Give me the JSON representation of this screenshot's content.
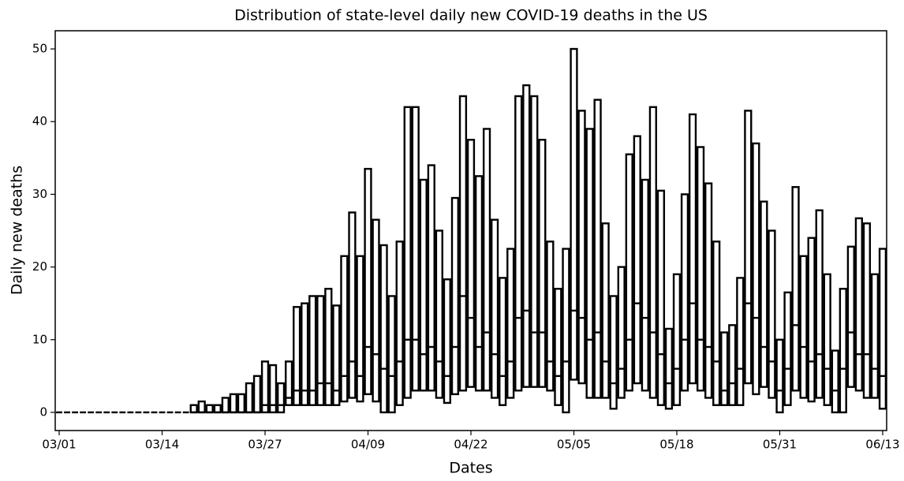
{
  "chart_data": {
    "type": "box",
    "title": "Distribution of state-level daily new COVID-19 deaths in the US",
    "x_label": "Dates",
    "y_label": "Daily new deaths",
    "categories": [
      "03/01",
      null,
      null,
      null,
      null,
      null,
      null,
      null,
      null,
      null,
      null,
      null,
      null,
      "03/14",
      null,
      null,
      null,
      null,
      null,
      null,
      null,
      null,
      null,
      null,
      null,
      null,
      "03/27",
      null,
      null,
      null,
      null,
      null,
      null,
      null,
      null,
      null,
      null,
      null,
      null,
      "04/09",
      null,
      null,
      null,
      null,
      null,
      null,
      null,
      null,
      null,
      null,
      null,
      null,
      "04/22",
      null,
      null,
      null,
      null,
      null,
      null,
      null,
      null,
      null,
      null,
      null,
      null,
      "05/05",
      null,
      null,
      null,
      null,
      null,
      null,
      null,
      null,
      null,
      null,
      null,
      null,
      "05/18",
      null,
      null,
      null,
      null,
      null,
      null,
      null,
      null,
      null,
      null,
      null,
      null,
      "05/31",
      null,
      null,
      null,
      null,
      null,
      null,
      null,
      null,
      null,
      null,
      null,
      null,
      "06/13"
    ],
    "q1": [
      0,
      0,
      0,
      0,
      0,
      0,
      0,
      0,
      0,
      0,
      0,
      0,
      0,
      0,
      0,
      0,
      0,
      0,
      0,
      0,
      0,
      0,
      0,
      0,
      0,
      0,
      0,
      0,
      0,
      1,
      1,
      1,
      1,
      1,
      1,
      1,
      1.5,
      2,
      1.5,
      2.5,
      1.5,
      0,
      0,
      1,
      2,
      3,
      3,
      3,
      2,
      1.3,
      2.5,
      3,
      3.5,
      3,
      3,
      2,
      1,
      2,
      3,
      3.5,
      3.5,
      3.5,
      3,
      1,
      0,
      4.5,
      4,
      2,
      2,
      2,
      0.5,
      2,
      3,
      4,
      3,
      2,
      1,
      0.5,
      1,
      3,
      4,
      3,
      2,
      1,
      1,
      1,
      1,
      4,
      2.5,
      3.5,
      2,
      0,
      1,
      3,
      2,
      1.5,
      2,
      1,
      0,
      0,
      3.5,
      3,
      2,
      2,
      0.5
    ],
    "median": [
      0,
      0,
      0,
      0,
      0,
      0,
      0,
      0,
      0,
      0,
      0,
      0,
      0,
      0,
      0,
      0,
      0,
      0,
      0,
      0,
      0,
      0,
      0,
      0,
      0,
      0,
      1,
      1,
      1,
      2,
      3,
      3,
      3,
      4,
      4,
      3,
      5,
      7,
      5,
      9,
      8,
      6,
      5,
      7,
      10,
      10,
      8,
      9,
      7,
      5,
      9,
      16,
      13,
      9,
      11,
      8,
      5,
      7,
      13,
      14,
      11,
      11,
      7,
      5,
      7,
      14,
      13,
      10,
      11,
      7,
      4,
      6,
      10,
      15,
      13,
      11,
      8,
      4,
      6,
      10,
      15,
      10,
      9,
      7,
      3,
      4,
      6,
      15,
      13,
      9,
      7,
      3,
      6,
      12,
      9,
      7,
      8,
      6,
      3,
      6,
      11,
      8,
      8,
      6,
      5
    ],
    "q3": [
      0,
      0,
      0,
      0,
      0,
      0,
      0,
      0,
      0,
      0,
      0,
      0,
      0,
      0,
      0,
      0,
      0,
      1,
      1.5,
      1,
      1,
      2,
      2.5,
      2.5,
      4,
      5,
      7,
      6.5,
      4,
      7,
      14.5,
      15,
      16,
      16,
      17,
      14.7,
      21.5,
      27.5,
      21.5,
      33.5,
      26.5,
      23,
      16,
      23.5,
      42,
      42,
      32,
      34,
      25,
      18.3,
      29.5,
      43.5,
      37.5,
      32.5,
      39,
      26.5,
      18.5,
      22.5,
      43.5,
      45,
      43.5,
      37.5,
      23.5,
      17,
      22.5,
      50,
      41.5,
      39,
      43,
      26,
      16,
      20,
      35.5,
      38,
      32,
      42,
      30.5,
      11.5,
      19,
      30,
      41,
      36.5,
      31.5,
      23.5,
      11,
      12,
      18.5,
      41.5,
      37,
      29,
      25,
      10,
      16.5,
      31,
      21.5,
      24,
      27.8,
      19,
      8.5,
      17,
      22.8,
      26.7,
      26,
      19,
      22.5
    ],
    "xlim": [
      -0.5,
      104.5
    ],
    "ylim": [
      -2.5,
      52.5
    ],
    "yticks": [
      0,
      10,
      20,
      30,
      40,
      50
    ],
    "color": "#000000",
    "fill": "#ffffff"
  }
}
